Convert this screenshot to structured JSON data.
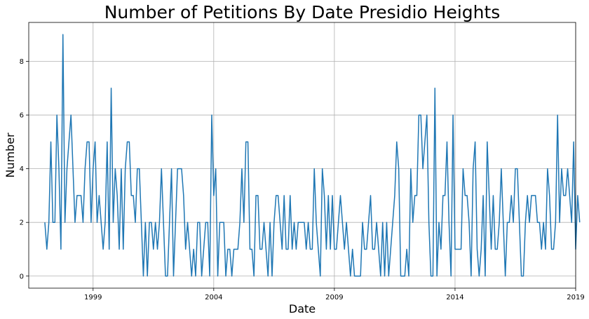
{
  "chart_data": {
    "type": "line",
    "title": "Number of Petitions By Date Presidio Heights",
    "xlabel": "Date",
    "ylabel": "Number",
    "xlim": [
      "1996-05",
      "2019-01"
    ],
    "ylim": [
      -0.45,
      9.45
    ],
    "x_ticks": [
      {
        "label": "1999",
        "date": "1999-01"
      },
      {
        "label": "2004",
        "date": "2004-01"
      },
      {
        "label": "2009",
        "date": "2009-01"
      },
      {
        "label": "2014",
        "date": "2014-01"
      },
      {
        "label": "2019",
        "date": "2019-01"
      }
    ],
    "y_ticks": [
      0,
      2,
      4,
      6,
      8
    ],
    "grid": true,
    "legend": "none",
    "series": [
      {
        "color": "#1f77b4",
        "x_start": "1997-01",
        "x_step": "month",
        "values": [
          2,
          1,
          2,
          5,
          2,
          2,
          6,
          4,
          1,
          9,
          2,
          4,
          5,
          6,
          4,
          2,
          3,
          3,
          3,
          2,
          4,
          5,
          5,
          2,
          4,
          5,
          2,
          3,
          2,
          1,
          2,
          5,
          1,
          7,
          2,
          4,
          3,
          1,
          4,
          1,
          4,
          5,
          5,
          3,
          3,
          2,
          4,
          4,
          2,
          0,
          2,
          0,
          2,
          2,
          1,
          2,
          1,
          2,
          4,
          2,
          0,
          0,
          2,
          4,
          0,
          2,
          4,
          4,
          4,
          3,
          1,
          2,
          1,
          0,
          1,
          0,
          2,
          2,
          0,
          1,
          2,
          2,
          0,
          6,
          3,
          4,
          0,
          2,
          2,
          2,
          0,
          1,
          1,
          0,
          1,
          1,
          1,
          2,
          4,
          2,
          5,
          5,
          1,
          1,
          0,
          3,
          3,
          1,
          1,
          2,
          1,
          0,
          2,
          0,
          2,
          3,
          3,
          2,
          1,
          3,
          1,
          1,
          3,
          1,
          2,
          1,
          2,
          2,
          2,
          2,
          1,
          2,
          1,
          1,
          4,
          2,
          1,
          0,
          4,
          3,
          1,
          3,
          1,
          3,
          1,
          1,
          2,
          3,
          2,
          1,
          2,
          1,
          0,
          1,
          0,
          0,
          0,
          0,
          2,
          1,
          1,
          2,
          3,
          1,
          1,
          2,
          1,
          0,
          2,
          0,
          2,
          0,
          1,
          2,
          3,
          5,
          4,
          0,
          0,
          0,
          1,
          0,
          4,
          2,
          3,
          3,
          6,
          6,
          4,
          5,
          6,
          2,
          0,
          0,
          7,
          0,
          2,
          1,
          3,
          3,
          5,
          2,
          0,
          6,
          1,
          1,
          1,
          1,
          4,
          3,
          3,
          2,
          0,
          4,
          5,
          1,
          0,
          1,
          3,
          0,
          5,
          3,
          1,
          3,
          1,
          1,
          2,
          4,
          2,
          0,
          2,
          2,
          3,
          2,
          4,
          4,
          2,
          0,
          0,
          2,
          3,
          2,
          3,
          3,
          3,
          2,
          2,
          1,
          2,
          1,
          4,
          3,
          1,
          1,
          2,
          6,
          2,
          4,
          3,
          3,
          4,
          3,
          2,
          5,
          1,
          3,
          2
        ]
      }
    ]
  }
}
